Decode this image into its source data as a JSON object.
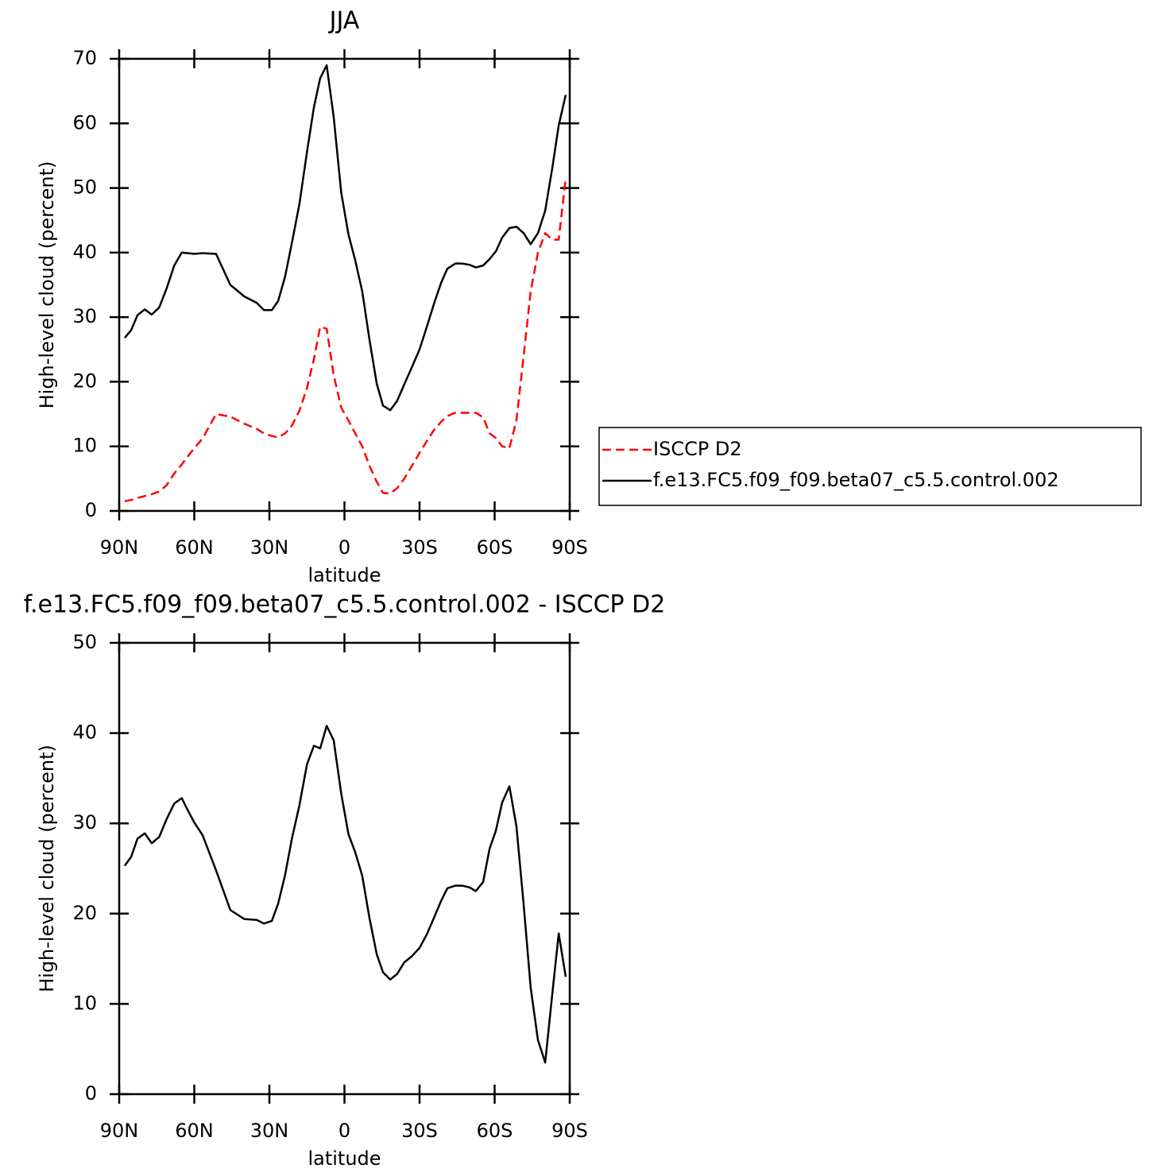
{
  "chart_data": [
    {
      "type": "line",
      "title": "JJA",
      "xlabel": "latitude",
      "ylabel": "High-level cloud (percent)",
      "xlim": [
        90,
        -90
      ],
      "ylim": [
        0,
        70
      ],
      "xticks": [
        {
          "value": 90,
          "label": "90N"
        },
        {
          "value": 60,
          "label": "60N"
        },
        {
          "value": 30,
          "label": "30N"
        },
        0,
        {
          "value": -30,
          "label": "30S"
        },
        {
          "value": -60,
          "label": "60S"
        },
        {
          "value": -90,
          "label": "90S"
        }
      ],
      "yticks": [
        0,
        10,
        20,
        30,
        40,
        50,
        60,
        70
      ],
      "legend": "right",
      "x": [
        87.8,
        85.2,
        82.7,
        79.8,
        77,
        74,
        71,
        68,
        65,
        62.5,
        60,
        56.7,
        51.3,
        45.6,
        40,
        35,
        32.2,
        29,
        26.5,
        23.7,
        21,
        18,
        15,
        12.2,
        9.7,
        7.1,
        4.3,
        1.3,
        -1.6,
        -4.3,
        -7.1,
        -10,
        -12.9,
        -15.4,
        -18.3,
        -21,
        -23.9,
        -27,
        -30,
        -32.9,
        -35.7,
        -38.6,
        -41.1,
        -44.3,
        -47.1,
        -50,
        -52.5,
        -55.4,
        -58,
        -60.5,
        -63,
        -65.9,
        -68.7,
        -71.6,
        -74.4,
        -77.3,
        -80.2,
        -83,
        -85.6,
        -88.4
      ],
      "series": [
        {
          "name": "ISCCP D2",
          "color": "#ff0000",
          "dashed": true,
          "values": [
            1.5,
            1.7,
            2,
            2.3,
            2.6,
            3,
            4,
            5.8,
            7.2,
            8.5,
            9.7,
            11.2,
            15,
            14.6,
            13.5,
            12.7,
            12,
            11.6,
            11.4,
            12,
            13.2,
            15.5,
            19,
            23.5,
            28.5,
            28.2,
            21,
            16,
            14,
            12,
            10,
            7,
            4.5,
            2.8,
            2.7,
            3.5,
            5,
            7,
            9,
            10.8,
            12.5,
            13.8,
            14.7,
            15.2,
            15.2,
            15.2,
            15.2,
            14.5,
            12,
            11.3,
            10,
            9.7,
            14,
            24,
            34,
            40,
            43,
            42,
            42,
            51.5
          ]
        },
        {
          "name": "f.e13.FC5.f09_f09.beta07_c5.5.control.002",
          "color": "#000000",
          "dashed": false,
          "values": [
            26.8,
            28,
            30.3,
            31.2,
            30.4,
            31.5,
            34.5,
            38,
            40,
            39.9,
            39.8,
            39.9,
            39.8,
            35,
            33.2,
            32.2,
            31.1,
            31.1,
            32.5,
            36.3,
            41.5,
            47.5,
            55.5,
            62.5,
            67,
            69,
            61,
            49.3,
            42.8,
            38.8,
            34,
            26.5,
            19.7,
            16.3,
            15.6,
            17,
            19.6,
            22.3,
            25,
            28.5,
            32,
            35.3,
            37.5,
            38.3,
            38.3,
            38.1,
            37.7,
            38,
            39,
            40.2,
            42.3,
            43.8,
            44,
            43,
            41.3,
            43,
            46.5,
            53,
            59.7,
            64.4
          ]
        }
      ]
    },
    {
      "type": "line",
      "title": "f.e13.FC5.f09_f09.beta07_c5.5.control.002 - ISCCP D2",
      "xlabel": "latitude",
      "ylabel": "High-level cloud (percent)",
      "xlim": [
        90,
        -90
      ],
      "ylim": [
        0,
        50
      ],
      "xticks": [
        {
          "value": 90,
          "label": "90N"
        },
        {
          "value": 60,
          "label": "60N"
        },
        {
          "value": 30,
          "label": "30N"
        },
        0,
        {
          "value": -30,
          "label": "30S"
        },
        {
          "value": -60,
          "label": "60S"
        },
        {
          "value": -90,
          "label": "90S"
        }
      ],
      "yticks": [
        0,
        10,
        20,
        30,
        40,
        50
      ],
      "x": [
        87.8,
        85.2,
        82.7,
        79.8,
        77,
        74,
        71,
        68,
        65,
        62.5,
        60,
        56.7,
        51.3,
        45.6,
        40,
        35,
        32.2,
        29,
        26.5,
        23.7,
        21,
        18,
        15,
        12.2,
        9.7,
        7.1,
        4.3,
        1.3,
        -1.6,
        -4.3,
        -7.1,
        -10,
        -12.9,
        -15.4,
        -18.3,
        -21,
        -23.9,
        -27,
        -30,
        -32.9,
        -35.7,
        -38.6,
        -41.1,
        -44.3,
        -47.1,
        -50,
        -52.5,
        -55.4,
        -58,
        -60.5,
        -63,
        -65.9,
        -68.7,
        -71.6,
        -74.4,
        -77.3,
        -80.2,
        -83,
        -85.6,
        -88.4
      ],
      "series": [
        {
          "color": "#000000",
          "dashed": false,
          "values": [
            25.3,
            26.3,
            28.3,
            28.9,
            27.8,
            28.5,
            30.5,
            32.2,
            32.8,
            31.4,
            30.1,
            28.7,
            24.8,
            20.4,
            19.4,
            19.3,
            18.9,
            19.2,
            21.1,
            24.3,
            28.3,
            32,
            36.5,
            38.6,
            38.3,
            40.8,
            39.2,
            33.3,
            28.8,
            26.8,
            24.2,
            19.5,
            15.5,
            13.5,
            12.7,
            13.3,
            14.6,
            15.3,
            16.2,
            17.7,
            19.5,
            21.4,
            22.8,
            23.1,
            23.1,
            22.9,
            22.5,
            23.5,
            27.2,
            29.2,
            32.3,
            34.1,
            29.7,
            21,
            11.8,
            6,
            3.5,
            11,
            17.8,
            13
          ]
        }
      ]
    }
  ]
}
